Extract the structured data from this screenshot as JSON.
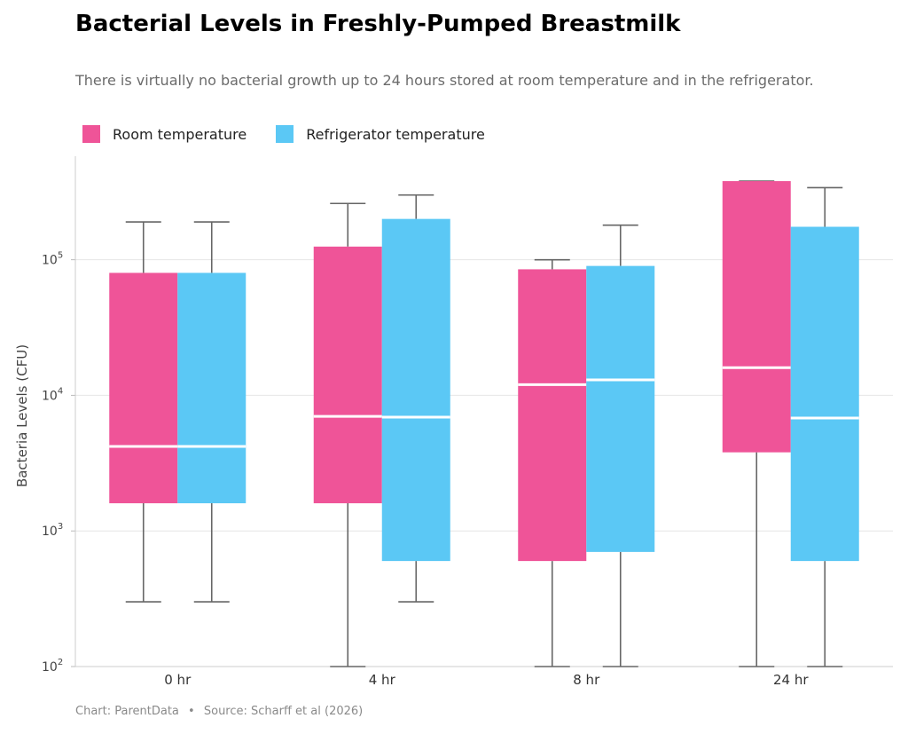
{
  "chart_data": {
    "type": "boxplot",
    "title": "Bacterial Levels in Freshly-Pumped Breastmilk",
    "subtitle": "There is virtually no bacterial growth up to 24 hours stored at room temperature and in the refrigerator.",
    "xlabel": "",
    "ylabel": "Bacteria Levels (CFU)",
    "yscale": "log",
    "ylim": [
      100,
      580000
    ],
    "yticks": [
      {
        "value": 100,
        "base": "10",
        "exp": "2"
      },
      {
        "value": 1000,
        "base": "10",
        "exp": "3"
      },
      {
        "value": 10000,
        "base": "10",
        "exp": "4"
      },
      {
        "value": 100000,
        "base": "10",
        "exp": "5"
      }
    ],
    "grid": true,
    "legend_position": "top-left",
    "categories": [
      "0 hr",
      "4 hr",
      "8 hr",
      "24 hr"
    ],
    "series": [
      {
        "name": "Room temperature",
        "color": "#ef5498",
        "boxes": [
          {
            "whisker_low": 300,
            "q1": 1600,
            "median": 4200,
            "q3": 80000,
            "whisker_high": 190000
          },
          {
            "whisker_low": 100,
            "q1": 1600,
            "median": 7000,
            "q3": 125000,
            "whisker_high": 260000
          },
          {
            "whisker_low": 100,
            "q1": 600,
            "median": 12000,
            "q3": 85000,
            "whisker_high": 100000
          },
          {
            "whisker_low": 100,
            "q1": 3800,
            "median": 16000,
            "q3": 380000,
            "whisker_high": 380000
          }
        ]
      },
      {
        "name": "Refrigerator temperature",
        "color": "#5bc8f5",
        "boxes": [
          {
            "whisker_low": 300,
            "q1": 1600,
            "median": 4200,
            "q3": 80000,
            "whisker_high": 190000
          },
          {
            "whisker_low": 300,
            "q1": 600,
            "median": 6900,
            "q3": 200000,
            "whisker_high": 300000
          },
          {
            "whisker_low": 100,
            "q1": 700,
            "median": 13000,
            "q3": 90000,
            "whisker_high": 180000
          },
          {
            "whisker_low": 100,
            "q1": 600,
            "median": 6800,
            "q3": 175000,
            "whisker_high": 340000
          }
        ]
      }
    ],
    "footer": {
      "credit": "Chart: ParentData",
      "separator": "•",
      "source": "Source: Scharff et al (2026)"
    }
  }
}
